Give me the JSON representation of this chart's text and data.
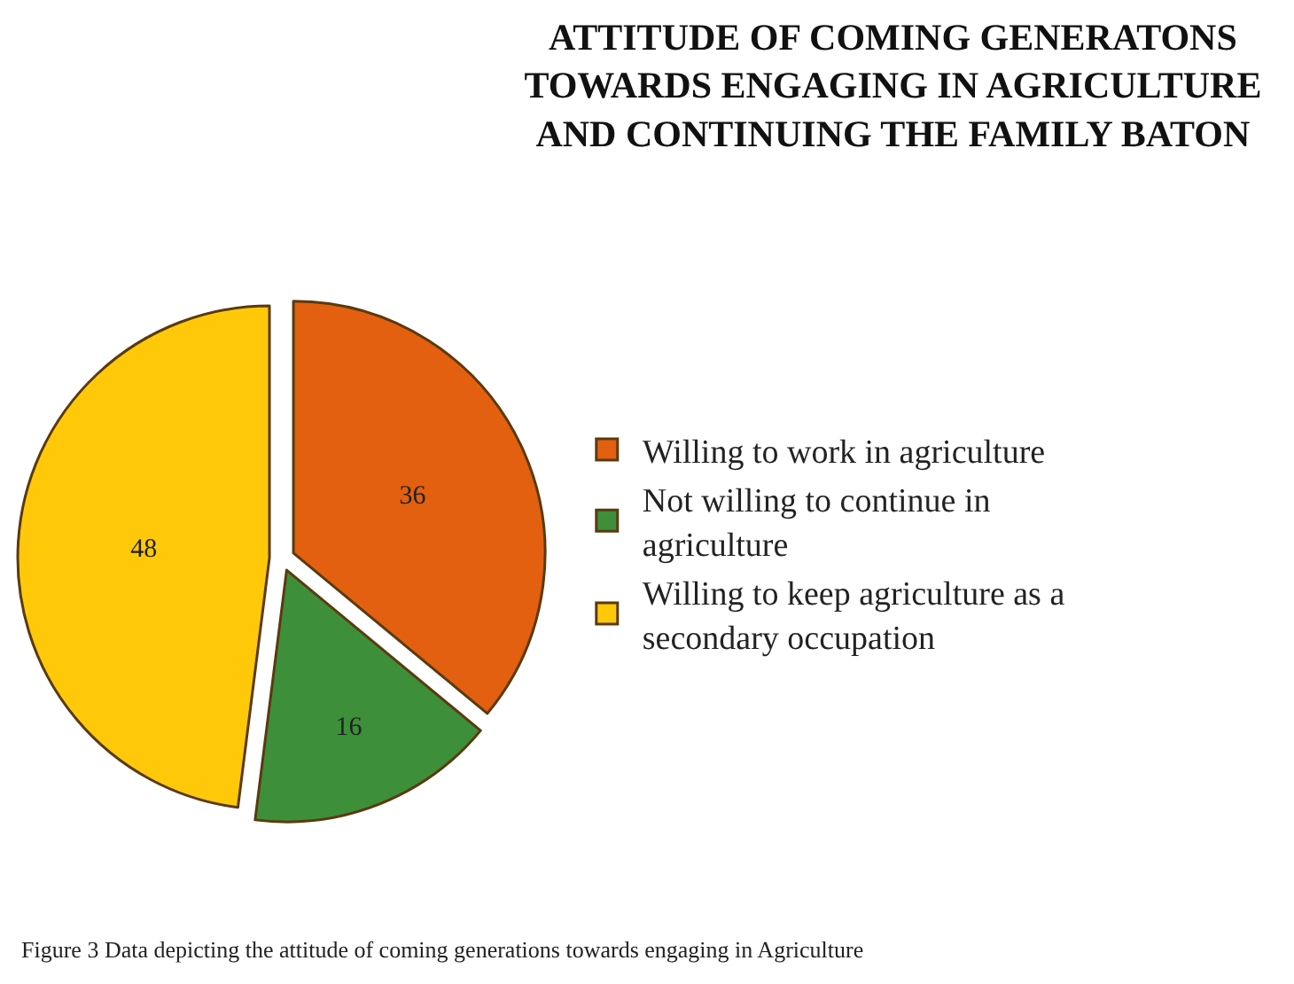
{
  "chart_data": {
    "type": "pie",
    "title": "ATTITUDE OF COMING GENERATONS TOWARDS ENGAGING IN AGRICULTURE AND CONTINUING THE FAMILY BATON",
    "categories": [
      "Willing to work in agriculture",
      "Not willing to continue in agriculture",
      "Willing to keep agriculture as a secondary occupation"
    ],
    "values": [
      36,
      16,
      48
    ],
    "colors": [
      "#e2600f",
      "#3d8f3a",
      "#ffc90a"
    ],
    "data_labels": true,
    "legend": "right",
    "annotations": [
      "Figure 3 Data depicting the attitude of coming generations towards engaging in Agriculture"
    ]
  }
}
